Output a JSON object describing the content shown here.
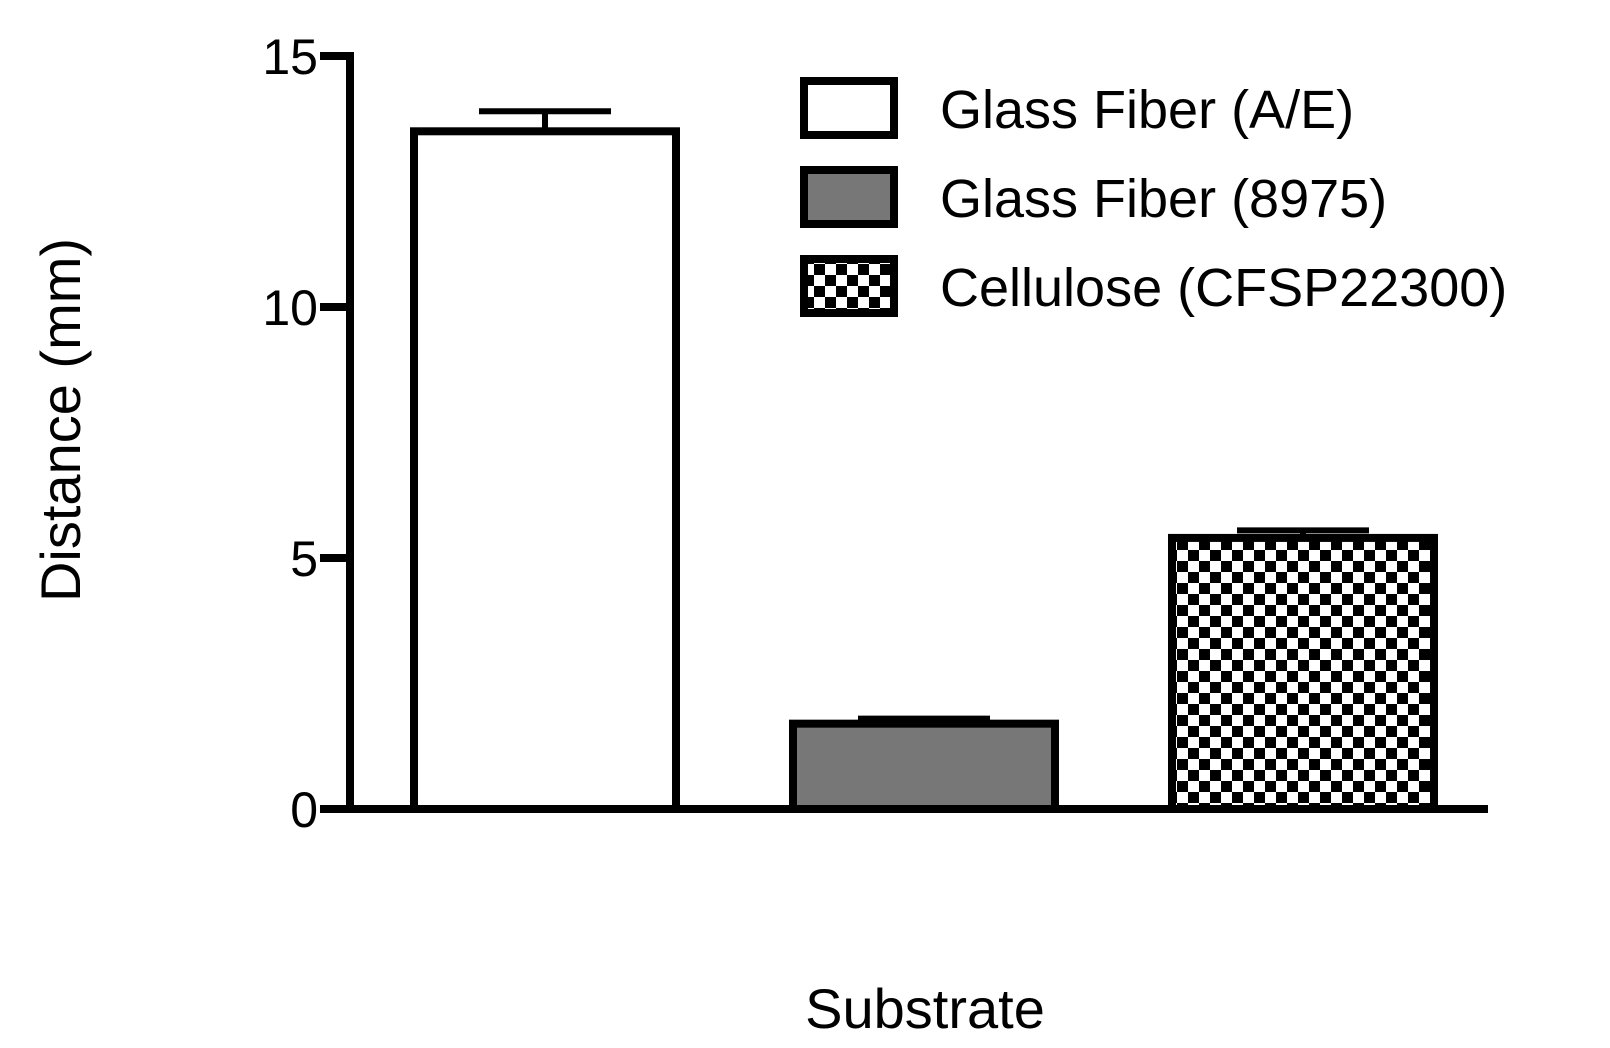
{
  "chart_data": {
    "type": "bar",
    "categories": [
      "Glass Fiber (A/E)",
      "Glass Fiber (8975)",
      "Cellulose (CFSP22300)"
    ],
    "series": [
      {
        "values": [
          13.5,
          1.7,
          5.4
        ],
        "errors": [
          0.4,
          0.1,
          0.15
        ],
        "fills": [
          "white",
          "gray",
          "checkerboard"
        ]
      }
    ],
    "title": "",
    "xlabel": "Substrate",
    "ylabel": "Distance (mm)",
    "ylim": [
      0,
      15
    ],
    "yticks": [
      0,
      5,
      10,
      15
    ],
    "grid": false,
    "legend": {
      "placement": "top-right",
      "entries": [
        "Glass Fiber (A/E)",
        "Glass Fiber (8975)",
        "Cellulose (CFSP22300)"
      ]
    },
    "colors": {
      "white": "#ffffff",
      "gray": "#777777",
      "edge": "#000000"
    }
  }
}
